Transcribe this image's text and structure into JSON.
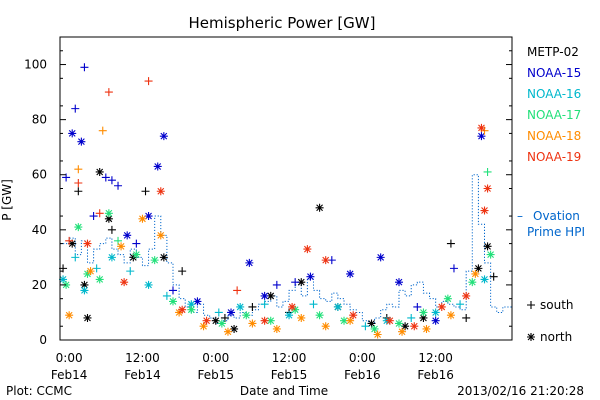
{
  "chart_data": {
    "type": "scatter",
    "title": "Hemispheric Power [GW]",
    "xlabel": "Date and Time",
    "ylabel": "P [GW]",
    "ylim": [
      0,
      110
    ],
    "y_ticks": [
      0,
      20,
      40,
      60,
      80,
      100
    ],
    "xlim": [
      "2013-02-13T22:30",
      "2013-02-17T00:30"
    ],
    "x_ticks": [
      {
        "x": "2013-02-14T00:00",
        "line1": "0:00",
        "line2": "Feb14"
      },
      {
        "x": "2013-02-14T12:00",
        "line1": "12:00",
        "line2": "Feb14"
      },
      {
        "x": "2013-02-15T00:00",
        "line1": "0:00",
        "line2": "Feb15"
      },
      {
        "x": "2013-02-15T12:00",
        "line1": "12:00",
        "line2": "Feb15"
      },
      {
        "x": "2013-02-16T00:00",
        "line1": "0:00",
        "line2": "Feb16"
      },
      {
        "x": "2013-02-16T12:00",
        "line1": "12:00",
        "line2": "Feb16"
      }
    ],
    "legend_position": "right",
    "series": [
      {
        "name": "METP-02",
        "color": "#000000",
        "points": [
          [
            "2013-02-13T23:00",
            26,
            "+"
          ],
          [
            "2013-02-14T00:30",
            35,
            "*"
          ],
          [
            "2013-02-14T01:30",
            54,
            "+"
          ],
          [
            "2013-02-14T02:30",
            20,
            "*"
          ],
          [
            "2013-02-14T03:00",
            8,
            "*"
          ],
          [
            "2013-02-14T05:00",
            61,
            "*"
          ],
          [
            "2013-02-14T06:30",
            44,
            "*"
          ],
          [
            "2013-02-14T07:00",
            40,
            "+"
          ],
          [
            "2013-02-14T10:30",
            30,
            "*"
          ],
          [
            "2013-02-14T12:30",
            54,
            "+"
          ],
          [
            "2013-02-14T15:30",
            30,
            "*"
          ],
          [
            "2013-02-14T18:30",
            25,
            "+"
          ],
          [
            "2013-02-15T00:00",
            7,
            "*"
          ],
          [
            "2013-02-15T01:30",
            8,
            "+"
          ],
          [
            "2013-02-15T03:00",
            4,
            "*"
          ],
          [
            "2013-02-15T06:00",
            12,
            "+"
          ],
          [
            "2013-02-15T09:00",
            16,
            "*"
          ],
          [
            "2013-02-15T12:00",
            10,
            "+"
          ],
          [
            "2013-02-15T14:00",
            21,
            "*"
          ],
          [
            "2013-02-15T17:00",
            48,
            "*"
          ],
          [
            "2013-02-15T20:00",
            12,
            "*"
          ],
          [
            "2013-02-16T01:30",
            6,
            "*"
          ],
          [
            "2013-02-16T04:00",
            8,
            "+"
          ],
          [
            "2013-02-16T07:00",
            5,
            "*"
          ],
          [
            "2013-02-16T10:00",
            8,
            "*"
          ],
          [
            "2013-02-16T14:30",
            35,
            "+"
          ],
          [
            "2013-02-16T17:00",
            8,
            "+"
          ],
          [
            "2013-02-16T19:00",
            26,
            "*"
          ],
          [
            "2013-02-16T20:30",
            34,
            "*"
          ],
          [
            "2013-02-16T21:30",
            23,
            "+"
          ]
        ]
      },
      {
        "name": "NOAA-15",
        "color": "#0000cc",
        "points": [
          [
            "2013-02-13T23:30",
            59,
            "+"
          ],
          [
            "2013-02-14T00:30",
            75,
            "*"
          ],
          [
            "2013-02-14T01:00",
            84,
            "+"
          ],
          [
            "2013-02-14T02:00",
            72,
            "*"
          ],
          [
            "2013-02-14T02:30",
            99,
            "+"
          ],
          [
            "2013-02-14T04:00",
            45,
            "+"
          ],
          [
            "2013-02-14T06:00",
            59,
            "+"
          ],
          [
            "2013-02-14T07:00",
            58,
            "+"
          ],
          [
            "2013-02-14T08:00",
            56,
            "+"
          ],
          [
            "2013-02-14T09:30",
            38,
            "*"
          ],
          [
            "2013-02-14T11:00",
            35,
            "+"
          ],
          [
            "2013-02-14T13:00",
            45,
            "*"
          ],
          [
            "2013-02-14T14:30",
            63,
            "*"
          ],
          [
            "2013-02-14T15:30",
            74,
            "*"
          ],
          [
            "2013-02-14T17:00",
            18,
            "+"
          ],
          [
            "2013-02-14T21:00",
            14,
            "*"
          ],
          [
            "2013-02-15T02:30",
            10,
            "*"
          ],
          [
            "2013-02-15T05:30",
            28,
            "*"
          ],
          [
            "2013-02-15T08:00",
            16,
            "*"
          ],
          [
            "2013-02-15T10:00",
            20,
            "+"
          ],
          [
            "2013-02-15T13:00",
            21,
            "+"
          ],
          [
            "2013-02-15T15:30",
            23,
            "*"
          ],
          [
            "2013-02-15T19:00",
            29,
            "+"
          ],
          [
            "2013-02-15T22:00",
            24,
            "*"
          ],
          [
            "2013-02-16T03:00",
            30,
            "*"
          ],
          [
            "2013-02-16T06:00",
            21,
            "*"
          ],
          [
            "2013-02-16T09:00",
            12,
            "+"
          ],
          [
            "2013-02-16T12:00",
            7,
            "*"
          ],
          [
            "2013-02-16T15:00",
            26,
            "+"
          ],
          [
            "2013-02-16T19:30",
            74,
            "*"
          ]
        ]
      },
      {
        "name": "NOAA-16",
        "color": "#00b8cc",
        "points": [
          [
            "2013-02-13T23:00",
            22,
            "*"
          ],
          [
            "2013-02-14T01:00",
            30,
            "+"
          ],
          [
            "2013-02-14T02:30",
            18,
            "*"
          ],
          [
            "2013-02-14T04:30",
            26,
            "+"
          ],
          [
            "2013-02-14T07:00",
            30,
            "*"
          ],
          [
            "2013-02-14T10:00",
            25,
            "+"
          ],
          [
            "2013-02-14T13:00",
            20,
            "*"
          ],
          [
            "2013-02-14T16:00",
            16,
            "+"
          ],
          [
            "2013-02-14T20:00",
            13,
            "*"
          ],
          [
            "2013-02-15T00:30",
            10,
            "+"
          ],
          [
            "2013-02-15T04:00",
            12,
            "*"
          ],
          [
            "2013-02-15T08:00",
            13,
            "+"
          ],
          [
            "2013-02-15T12:00",
            9,
            "*"
          ],
          [
            "2013-02-15T16:00",
            13,
            "+"
          ],
          [
            "2013-02-15T20:00",
            12,
            "*"
          ],
          [
            "2013-02-16T00:30",
            5,
            "+"
          ],
          [
            "2013-02-16T04:00",
            7,
            "*"
          ],
          [
            "2013-02-16T08:00",
            8,
            "+"
          ],
          [
            "2013-02-16T12:00",
            10,
            "*"
          ],
          [
            "2013-02-16T16:00",
            13,
            "+"
          ],
          [
            "2013-02-16T20:00",
            22,
            "*"
          ]
        ]
      },
      {
        "name": "NOAA-17",
        "color": "#22e07a",
        "points": [
          [
            "2013-02-13T23:30",
            20,
            "*"
          ],
          [
            "2013-02-14T01:30",
            41,
            "*"
          ],
          [
            "2013-02-14T03:00",
            24,
            "*"
          ],
          [
            "2013-02-14T05:00",
            22,
            "*"
          ],
          [
            "2013-02-14T06:30",
            46,
            "*"
          ],
          [
            "2013-02-14T08:00",
            36,
            "+"
          ],
          [
            "2013-02-14T11:00",
            31,
            "*"
          ],
          [
            "2013-02-14T14:00",
            29,
            "*"
          ],
          [
            "2013-02-14T17:00",
            14,
            "*"
          ],
          [
            "2013-02-14T20:00",
            11,
            "*"
          ],
          [
            "2013-02-15T01:00",
            6,
            "*"
          ],
          [
            "2013-02-15T05:00",
            9,
            "*"
          ],
          [
            "2013-02-15T09:00",
            7,
            "*"
          ],
          [
            "2013-02-15T13:00",
            11,
            "*"
          ],
          [
            "2013-02-15T17:00",
            9,
            "*"
          ],
          [
            "2013-02-15T21:00",
            7,
            "*"
          ],
          [
            "2013-02-16T02:00",
            4,
            "*"
          ],
          [
            "2013-02-16T06:00",
            6,
            "*"
          ],
          [
            "2013-02-16T10:00",
            10,
            "*"
          ],
          [
            "2013-02-16T14:00",
            15,
            "*"
          ],
          [
            "2013-02-16T18:00",
            21,
            "*"
          ],
          [
            "2013-02-16T20:30",
            61,
            "+"
          ],
          [
            "2013-02-16T21:00",
            31,
            "*"
          ]
        ]
      },
      {
        "name": "NOAA-18",
        "color": "#ff8c00",
        "points": [
          [
            "2013-02-14T00:00",
            9,
            "*"
          ],
          [
            "2013-02-14T01:30",
            62,
            "+"
          ],
          [
            "2013-02-14T03:30",
            25,
            "*"
          ],
          [
            "2013-02-14T05:30",
            76,
            "+"
          ],
          [
            "2013-02-14T08:30",
            34,
            "*"
          ],
          [
            "2013-02-14T12:00",
            44,
            "*"
          ],
          [
            "2013-02-14T15:00",
            38,
            "*"
          ],
          [
            "2013-02-14T18:00",
            10,
            "*"
          ],
          [
            "2013-02-14T22:00",
            5,
            "*"
          ],
          [
            "2013-02-15T02:00",
            3,
            "*"
          ],
          [
            "2013-02-15T06:00",
            6,
            "*"
          ],
          [
            "2013-02-15T10:00",
            4,
            "*"
          ],
          [
            "2013-02-15T14:00",
            8,
            "*"
          ],
          [
            "2013-02-15T18:00",
            5,
            "*"
          ],
          [
            "2013-02-15T22:00",
            7,
            "*"
          ],
          [
            "2013-02-16T02:30",
            2,
            "*"
          ],
          [
            "2013-02-16T06:30",
            3,
            "*"
          ],
          [
            "2013-02-16T10:30",
            4,
            "*"
          ],
          [
            "2013-02-16T14:30",
            9,
            "*"
          ],
          [
            "2013-02-16T18:30",
            24,
            "*"
          ],
          [
            "2013-02-16T20:00",
            76,
            "+"
          ]
        ]
      },
      {
        "name": "NOAA-19",
        "color": "#ee3311",
        "points": [
          [
            "2013-02-14T00:00",
            36,
            "+"
          ],
          [
            "2013-02-14T01:30",
            57,
            "+"
          ],
          [
            "2013-02-14T03:00",
            35,
            "*"
          ],
          [
            "2013-02-14T05:00",
            46,
            "+"
          ],
          [
            "2013-02-14T06:30",
            90,
            "+"
          ],
          [
            "2013-02-14T09:00",
            21,
            "*"
          ],
          [
            "2013-02-14T13:00",
            94,
            "+"
          ],
          [
            "2013-02-14T15:00",
            54,
            "*"
          ],
          [
            "2013-02-14T18:30",
            11,
            "*"
          ],
          [
            "2013-02-14T22:30",
            7,
            "*"
          ],
          [
            "2013-02-15T03:30",
            18,
            "+"
          ],
          [
            "2013-02-15T08:00",
            7,
            "*"
          ],
          [
            "2013-02-15T12:30",
            12,
            "*"
          ],
          [
            "2013-02-15T15:00",
            33,
            "*"
          ],
          [
            "2013-02-15T18:00",
            29,
            "*"
          ],
          [
            "2013-02-15T22:30",
            9,
            "*"
          ],
          [
            "2013-02-16T04:30",
            7,
            "*"
          ],
          [
            "2013-02-16T08:30",
            5,
            "*"
          ],
          [
            "2013-02-16T13:00",
            12,
            "*"
          ],
          [
            "2013-02-16T17:00",
            16,
            "*"
          ],
          [
            "2013-02-16T20:00",
            47,
            "*"
          ],
          [
            "2013-02-16T20:30",
            55,
            "*"
          ],
          [
            "2013-02-16T19:30",
            77,
            "*"
          ]
        ]
      }
    ],
    "ovation": {
      "label_line1": "Ovation",
      "label_line2": "Prime HPI",
      "dash": "–",
      "color": "#0066cc",
      "steps": [
        [
          "2013-02-13T22:30",
          35
        ],
        [
          "2013-02-14T00:00",
          37
        ],
        [
          "2013-02-14T01:00",
          31
        ],
        [
          "2013-02-14T02:00",
          36
        ],
        [
          "2013-02-14T03:00",
          28
        ],
        [
          "2013-02-14T04:00",
          33
        ],
        [
          "2013-02-14T05:00",
          35
        ],
        [
          "2013-02-14T06:00",
          37
        ],
        [
          "2013-02-14T07:00",
          33
        ],
        [
          "2013-02-14T08:00",
          31
        ],
        [
          "2013-02-14T09:00",
          28
        ],
        [
          "2013-02-14T10:00",
          33
        ],
        [
          "2013-02-14T11:00",
          30
        ],
        [
          "2013-02-14T12:00",
          27
        ],
        [
          "2013-02-14T13:00",
          33
        ],
        [
          "2013-02-14T14:00",
          45
        ],
        [
          "2013-02-14T15:00",
          38
        ],
        [
          "2013-02-14T16:00",
          28
        ],
        [
          "2013-02-14T17:00",
          20
        ],
        [
          "2013-02-14T18:00",
          15
        ],
        [
          "2013-02-14T19:00",
          12
        ],
        [
          "2013-02-14T20:00",
          10
        ],
        [
          "2013-02-14T21:00",
          13
        ],
        [
          "2013-02-14T22:00",
          9
        ],
        [
          "2013-02-14T23:00",
          8
        ],
        [
          "2013-02-15T00:00",
          6
        ],
        [
          "2013-02-15T01:00",
          7
        ],
        [
          "2013-02-15T02:00",
          9
        ],
        [
          "2013-02-15T03:00",
          8
        ],
        [
          "2013-02-15T04:00",
          10
        ],
        [
          "2013-02-15T05:00",
          9
        ],
        [
          "2013-02-15T06:00",
          11
        ],
        [
          "2013-02-15T07:00",
          13
        ],
        [
          "2013-02-15T08:00",
          14
        ],
        [
          "2013-02-15T09:00",
          16
        ],
        [
          "2013-02-15T10:00",
          12
        ],
        [
          "2013-02-15T11:00",
          14
        ],
        [
          "2013-02-15T12:00",
          18
        ],
        [
          "2013-02-15T13:00",
          20
        ],
        [
          "2013-02-15T14:00",
          16
        ],
        [
          "2013-02-15T15:00",
          22
        ],
        [
          "2013-02-15T16:00",
          18
        ],
        [
          "2013-02-15T17:00",
          15
        ],
        [
          "2013-02-15T18:00",
          14
        ],
        [
          "2013-02-15T19:00",
          17
        ],
        [
          "2013-02-15T20:00",
          15
        ],
        [
          "2013-02-15T21:00",
          13
        ],
        [
          "2013-02-15T22:00",
          11
        ],
        [
          "2013-02-15T23:00",
          10
        ],
        [
          "2013-02-16T00:00",
          7
        ],
        [
          "2013-02-16T01:00",
          6
        ],
        [
          "2013-02-16T02:00",
          8
        ],
        [
          "2013-02-16T03:00",
          11
        ],
        [
          "2013-02-16T04:00",
          13
        ],
        [
          "2013-02-16T05:00",
          12
        ],
        [
          "2013-02-16T06:00",
          18
        ],
        [
          "2013-02-16T07:00",
          16
        ],
        [
          "2013-02-16T08:00",
          20
        ],
        [
          "2013-02-16T09:00",
          21
        ],
        [
          "2013-02-16T10:00",
          17
        ],
        [
          "2013-02-16T11:00",
          15
        ],
        [
          "2013-02-16T12:00",
          12
        ],
        [
          "2013-02-16T13:00",
          14
        ],
        [
          "2013-02-16T14:00",
          13
        ],
        [
          "2013-02-16T15:00",
          12
        ],
        [
          "2013-02-16T16:00",
          11
        ],
        [
          "2013-02-16T17:00",
          25
        ],
        [
          "2013-02-16T18:00",
          60
        ],
        [
          "2013-02-16T19:00",
          42
        ],
        [
          "2013-02-16T20:00",
          28
        ],
        [
          "2013-02-16T21:00",
          12
        ],
        [
          "2013-02-16T22:00",
          10
        ],
        [
          "2013-02-16T23:00",
          12
        ],
        [
          "2013-02-17T00:30",
          12
        ]
      ]
    },
    "marker_legend": [
      {
        "symbol": "+",
        "label": "south"
      },
      {
        "symbol": "*",
        "label": "north"
      }
    ]
  },
  "footer": {
    "plot_label": "Plot: CCMC",
    "timestamp": "2013/02/16 21:20:28"
  }
}
